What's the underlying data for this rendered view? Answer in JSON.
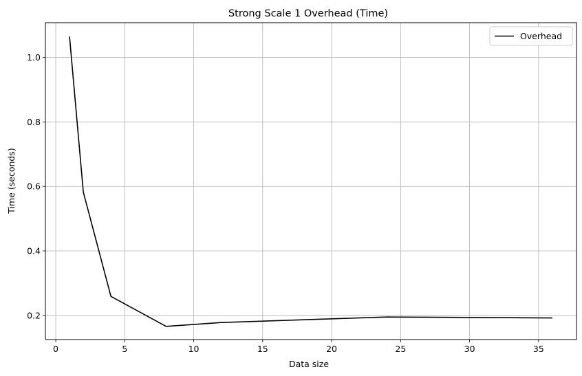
{
  "chart_data": {
    "type": "line",
    "title": "Strong Scale 1 Overhead (Time)",
    "xlabel": "Data size",
    "ylabel": "Time (seconds)",
    "xlim": [
      -0.75,
      37.75
    ],
    "ylim": [
      0.125,
      1.108
    ],
    "xticks": [
      0,
      5,
      10,
      15,
      20,
      25,
      30,
      35
    ],
    "yticks": [
      0.2,
      0.4,
      0.6,
      0.8,
      1.0
    ],
    "ytick_labels": [
      "0.2",
      "0.4",
      "0.6",
      "0.8",
      "1.0"
    ],
    "grid": true,
    "legend_position": "top-right",
    "series": [
      {
        "name": "Overhead",
        "color": "#000000",
        "x": [
          1,
          2,
          4,
          8,
          12,
          24,
          36
        ],
        "y": [
          1.065,
          0.582,
          0.259,
          0.166,
          0.178,
          0.195,
          0.192
        ]
      }
    ]
  }
}
